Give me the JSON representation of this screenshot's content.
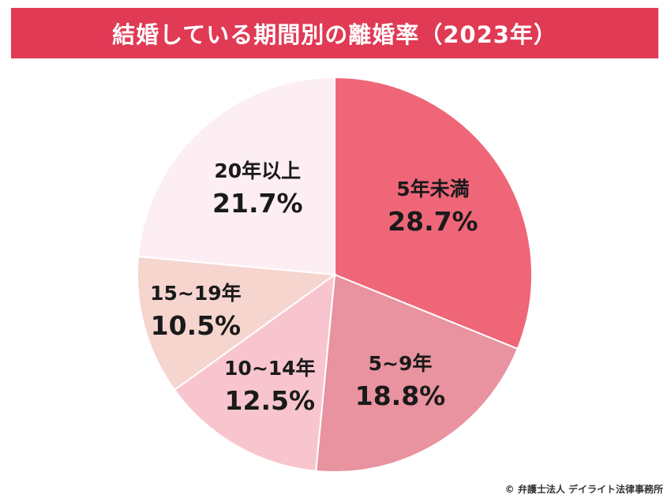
{
  "title": "結婚している期間別の離婚率（2023年）",
  "chart_data": {
    "type": "pie",
    "title": "結婚している期間別の離婚率（2023年）",
    "start": "12 o'clock",
    "direction": "clockwise",
    "slices": [
      {
        "label": "5年未満",
        "value": 28.7,
        "value_label": "28.7%",
        "color": "#ef6679"
      },
      {
        "label": "5~9年",
        "value": 18.8,
        "value_label": "18.8%",
        "color": "#e8939f"
      },
      {
        "label": "10~14年",
        "value": 12.5,
        "value_label": "12.5%",
        "color": "#f8c5cf"
      },
      {
        "label": "15~19年",
        "value": 10.5,
        "value_label": "10.5%",
        "color": "#f6d5cf"
      },
      {
        "label": "20年以上",
        "value": 21.7,
        "value_label": "21.7%",
        "color": "#fdeef3"
      }
    ]
  },
  "credit": "© 弁護士法人 デイライト法律事務所",
  "colors": {
    "title_background": "#e03a55",
    "title_text": "#ffffff"
  }
}
